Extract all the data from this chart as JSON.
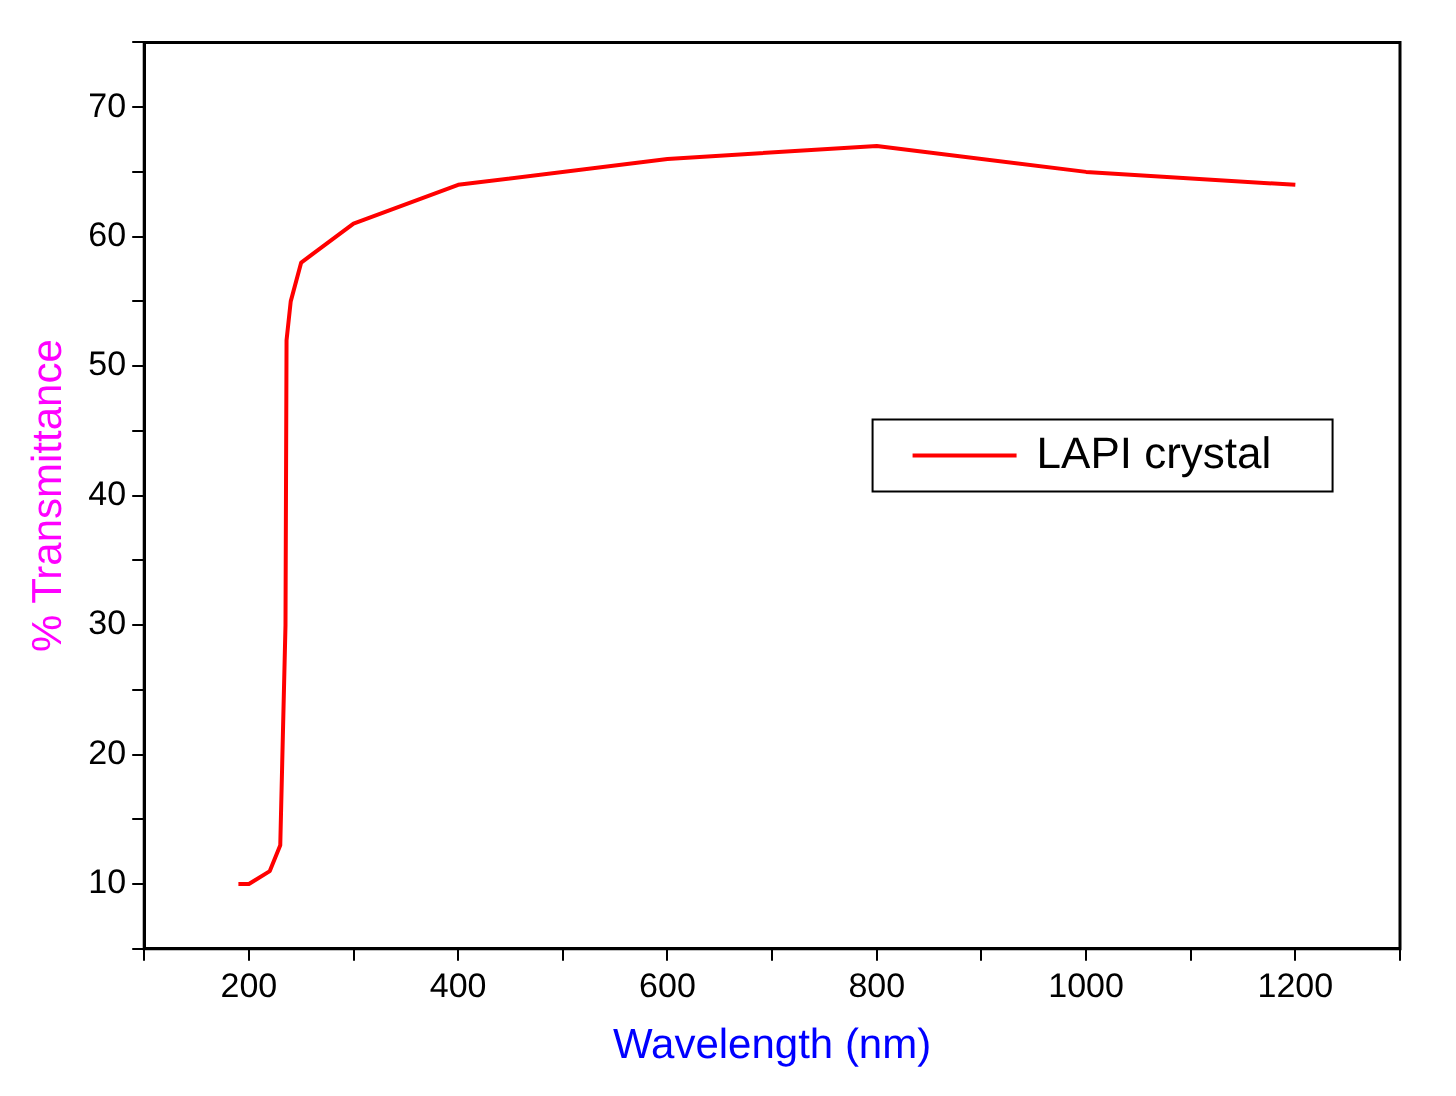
{
  "chart_data": {
    "type": "line",
    "xlabel": "Wavelength (nm)",
    "ylabel": "% Transmittance",
    "x": [
      190,
      200,
      220,
      230,
      235,
      236,
      240,
      250,
      300,
      400,
      600,
      800,
      1000,
      1200
    ],
    "series": [
      {
        "name": "LAPI crystal",
        "color": "#ff0000",
        "values": [
          10,
          10,
          11,
          13,
          30,
          52,
          55,
          58,
          61,
          64,
          66,
          67,
          65,
          64
        ]
      }
    ],
    "xlim": [
      100,
      1300
    ],
    "xticks": [
      {
        "value": 100,
        "label": null
      },
      200,
      {
        "value": 300,
        "label": null
      },
      400,
      {
        "value": 500,
        "label": null
      },
      600,
      {
        "value": 700,
        "label": null
      },
      800,
      {
        "value": 900,
        "label": null
      },
      1000,
      {
        "value": 1100,
        "label": null
      },
      1200,
      {
        "value": 1300,
        "label": null
      }
    ],
    "ylim": [
      5,
      75
    ],
    "yticks": [
      {
        "value": 5,
        "label": null
      },
      10,
      {
        "value": 15,
        "label": null
      },
      20,
      {
        "value": 25,
        "label": null
      },
      30,
      {
        "value": 35,
        "label": null
      },
      40,
      {
        "value": 45,
        "label": null
      },
      50,
      {
        "value": 55,
        "label": null
      },
      60,
      {
        "value": 65,
        "label": null
      },
      70,
      {
        "value": 75,
        "label": null
      }
    ],
    "grid": false,
    "legend": "right",
    "marker": "none",
    "line_style": "solid"
  }
}
